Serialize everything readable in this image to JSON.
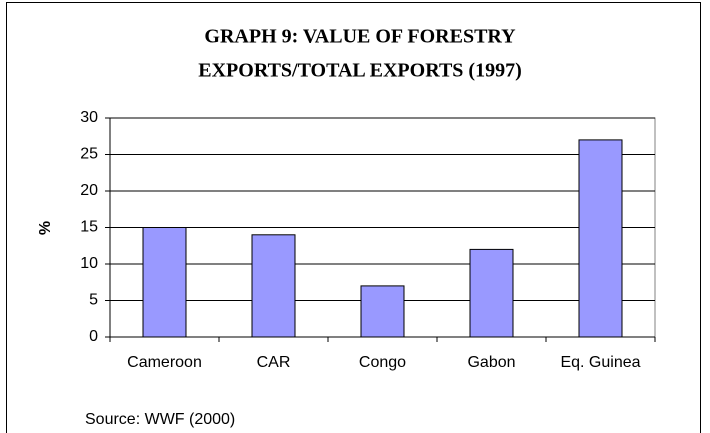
{
  "chart_data": {
    "type": "bar",
    "title": [
      "GRAPH 9: VALUE OF FORESTRY",
      "EXPORTS/TOTAL EXPORTS (1997)"
    ],
    "y_label": "%",
    "categories": [
      "Cameroon",
      "CAR",
      "Congo",
      "Gabon",
      "Eq. Guinea"
    ],
    "values": [
      15,
      14,
      7,
      12,
      27
    ],
    "color": "#9999ff",
    "ylim": [
      0,
      30
    ],
    "yticks": [
      0,
      5,
      10,
      15,
      20,
      25,
      30
    ],
    "grid": true,
    "source": "Source: WWF (2000)"
  }
}
